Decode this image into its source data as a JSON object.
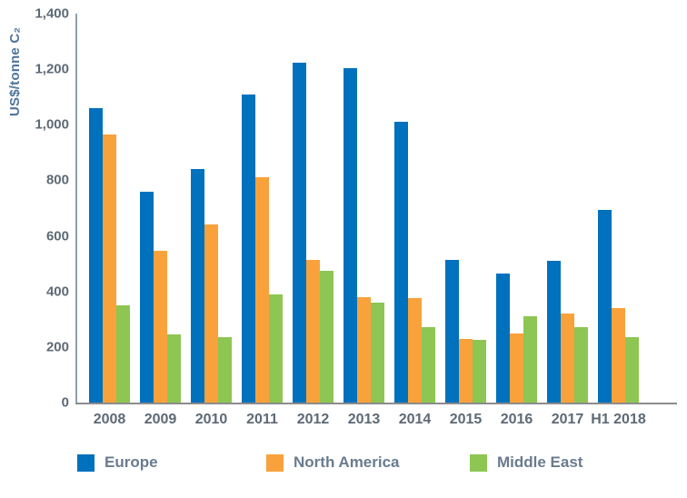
{
  "chart_data": {
    "type": "bar",
    "title": "",
    "xlabel": "",
    "ylabel": "US$/tonne C₂",
    "ylim": [
      0,
      1400
    ],
    "grid": false,
    "legend_position": "bottom",
    "yticks": [
      {
        "value": 0,
        "label": "0"
      },
      {
        "value": 200,
        "label": "200"
      },
      {
        "value": 400,
        "label": "400"
      },
      {
        "value": 600,
        "label": "600"
      },
      {
        "value": 800,
        "label": "800"
      },
      {
        "value": 1000,
        "label": "1,000"
      },
      {
        "value": 1200,
        "label": "1,200"
      },
      {
        "value": 1400,
        "label": "1,400"
      }
    ],
    "categories": [
      "2008",
      "2009",
      "2010",
      "2011",
      "2012",
      "2013",
      "2014",
      "2015",
      "2016",
      "2017",
      "H1 2018"
    ],
    "series": [
      {
        "name": "Europe",
        "color": "#0071BC",
        "values": [
          1060,
          760,
          840,
          1110,
          1225,
          1205,
          1010,
          515,
          465,
          510,
          695
        ]
      },
      {
        "name": "North America",
        "color": "#F9A23B",
        "values": [
          965,
          545,
          640,
          810,
          515,
          380,
          375,
          230,
          250,
          320,
          340
        ]
      },
      {
        "name": "Middle East",
        "color": "#8DC653",
        "values": [
          350,
          245,
          235,
          390,
          475,
          360,
          270,
          225,
          310,
          270,
          235
        ]
      }
    ]
  },
  "colors": {
    "background": "#FFFFFF",
    "y_axis_line": "#8DA0B0",
    "x_axis_line": "#8C8C8C",
    "tick_text": "#5D6975",
    "ylabel_text": "#4F759C",
    "legend_text": "#6A7B8F"
  }
}
